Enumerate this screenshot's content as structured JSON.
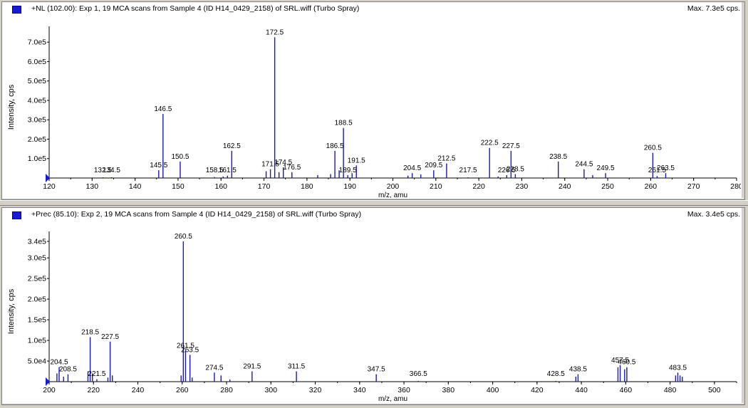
{
  "colors": {
    "bar": "#1818c8",
    "axis": "#000000",
    "text": "#000000",
    "icon": "#1a1ad6",
    "panel_bg": "#ffffff",
    "frame": "#d4d0c8"
  },
  "panel1": {
    "title": "+NL (102.00): Exp 1, 19 MCA scans from Sample 4 (ID H14_0429_2158) of SRL.wiff (Turbo Spray)",
    "max_label": "Max. 7.3e5 cps.",
    "icon": "spectrum-icon"
  },
  "panel2": {
    "title": "+Prec (85.10): Exp 2, 19 MCA scans from Sample 4 (ID H14_0429_2158) of SRL.wiff (Turbo Spray)",
    "max_label": "Max. 3.4e5 cps.",
    "icon": "spectrum-icon"
  },
  "chart_data": [
    {
      "type": "bar",
      "xlabel": "m/z, amu",
      "ylabel": "Intensity, cps",
      "xlim": [
        120,
        280
      ],
      "ylim": [
        0,
        730000
      ],
      "xticks": [
        120,
        130,
        140,
        150,
        160,
        170,
        180,
        190,
        200,
        210,
        220,
        230,
        240,
        250,
        260,
        270,
        280
      ],
      "yticks": [
        {
          "value": 100000,
          "label": "1.0e5"
        },
        {
          "value": 200000,
          "label": "2.0e5"
        },
        {
          "value": 300000,
          "label": "3.0e5"
        },
        {
          "value": 400000,
          "label": "4.0e5"
        },
        {
          "value": 500000,
          "label": "5.0e5"
        },
        {
          "value": 600000,
          "label": "6.0e5"
        },
        {
          "value": 700000,
          "label": "7.0e5"
        }
      ],
      "peaks": [
        {
          "mz": 132.5,
          "intensity": 2000,
          "label": "132.5"
        },
        {
          "mz": 134.5,
          "intensity": 2000,
          "label": "134.5"
        },
        {
          "mz": 145.5,
          "intensity": 40000,
          "label": "145.5"
        },
        {
          "mz": 146.5,
          "intensity": 330000,
          "label": "146.5"
        },
        {
          "mz": 150.5,
          "intensity": 85000,
          "label": "150.5"
        },
        {
          "mz": 158.5,
          "intensity": 5000,
          "label": "158.5"
        },
        {
          "mz": 160.5,
          "intensity": 8000,
          "label": ""
        },
        {
          "mz": 161.5,
          "intensity": 12000,
          "label": "161.5"
        },
        {
          "mz": 162.5,
          "intensity": 140000,
          "label": "162.5"
        },
        {
          "mz": 170.5,
          "intensity": 35000,
          "label": ""
        },
        {
          "mz": 171.5,
          "intensity": 45000,
          "label": "171.5"
        },
        {
          "mz": 172.5,
          "intensity": 725000,
          "label": "172.5"
        },
        {
          "mz": 173.5,
          "intensity": 30000,
          "label": ""
        },
        {
          "mz": 174.5,
          "intensity": 55000,
          "label": "174.5"
        },
        {
          "mz": 176.5,
          "intensity": 30000,
          "label": "176.5"
        },
        {
          "mz": 182.5,
          "intensity": 15000,
          "label": ""
        },
        {
          "mz": 185.5,
          "intensity": 20000,
          "label": ""
        },
        {
          "mz": 186.5,
          "intensity": 140000,
          "label": "186.5"
        },
        {
          "mz": 187.5,
          "intensity": 40000,
          "label": ""
        },
        {
          "mz": 188.5,
          "intensity": 258000,
          "label": "188.5"
        },
        {
          "mz": 189.5,
          "intensity": 15000,
          "label": "189.5"
        },
        {
          "mz": 190.5,
          "intensity": 25000,
          "label": ""
        },
        {
          "mz": 191.5,
          "intensity": 65000,
          "label": "191.5"
        },
        {
          "mz": 203.5,
          "intensity": 12000,
          "label": ""
        },
        {
          "mz": 204.5,
          "intensity": 25000,
          "label": "204.5"
        },
        {
          "mz": 206.5,
          "intensity": 18000,
          "label": ""
        },
        {
          "mz": 209.5,
          "intensity": 40000,
          "label": "209.5"
        },
        {
          "mz": 212.5,
          "intensity": 75000,
          "label": "212.5"
        },
        {
          "mz": 217.5,
          "intensity": 3000,
          "label": "217.5"
        },
        {
          "mz": 222.5,
          "intensity": 155000,
          "label": "222.5"
        },
        {
          "mz": 224.5,
          "intensity": 8000,
          "label": ""
        },
        {
          "mz": 226.5,
          "intensity": 15000,
          "label": "226.5"
        },
        {
          "mz": 227.5,
          "intensity": 140000,
          "label": "227.5"
        },
        {
          "mz": 228.5,
          "intensity": 20000,
          "label": "228.5"
        },
        {
          "mz": 238.5,
          "intensity": 85000,
          "label": "238.5"
        },
        {
          "mz": 244.5,
          "intensity": 45000,
          "label": "244.5"
        },
        {
          "mz": 246.5,
          "intensity": 15000,
          "label": ""
        },
        {
          "mz": 249.5,
          "intensity": 25000,
          "label": "249.5"
        },
        {
          "mz": 260.5,
          "intensity": 130000,
          "label": "260.5"
        },
        {
          "mz": 261.5,
          "intensity": 10000,
          "label": "261.5"
        },
        {
          "mz": 263.5,
          "intensity": 25000,
          "label": "263.5"
        }
      ]
    },
    {
      "type": "bar",
      "xlabel": "m/z, amu",
      "ylabel": "Intensity, cps",
      "xlim": [
        200,
        510
      ],
      "ylim": [
        0,
        340000
      ],
      "xticks": [
        200,
        220,
        240,
        260,
        280,
        300,
        320,
        340,
        360,
        380,
        400,
        420,
        440,
        460,
        480,
        500
      ],
      "yticks": [
        {
          "value": 50000,
          "label": "5.0e4"
        },
        {
          "value": 100000,
          "label": "1.0e5"
        },
        {
          "value": 150000,
          "label": "1.5e5"
        },
        {
          "value": 200000,
          "label": "2.0e5"
        },
        {
          "value": 250000,
          "label": "2.5e5"
        },
        {
          "value": 300000,
          "label": "3.0e5"
        },
        {
          "value": 340000,
          "label": "3.4e5"
        }
      ],
      "peaks": [
        {
          "mz": 203.5,
          "intensity": 20000,
          "label": ""
        },
        {
          "mz": 204.5,
          "intensity": 35000,
          "label": "204.5"
        },
        {
          "mz": 206.5,
          "intensity": 12000,
          "label": ""
        },
        {
          "mz": 208.5,
          "intensity": 18000,
          "label": "208.5"
        },
        {
          "mz": 217.5,
          "intensity": 25000,
          "label": ""
        },
        {
          "mz": 218.5,
          "intensity": 108000,
          "label": "218.5"
        },
        {
          "mz": 219.5,
          "intensity": 20000,
          "label": ""
        },
        {
          "mz": 221.5,
          "intensity": 6000,
          "label": "221.5"
        },
        {
          "mz": 226.5,
          "intensity": 10000,
          "label": ""
        },
        {
          "mz": 227.5,
          "intensity": 97000,
          "label": "227.5"
        },
        {
          "mz": 228.5,
          "intensity": 15000,
          "label": ""
        },
        {
          "mz": 259.5,
          "intensity": 15000,
          "label": ""
        },
        {
          "mz": 260.5,
          "intensity": 340000,
          "label": "260.5"
        },
        {
          "mz": 261.5,
          "intensity": 75000,
          "label": "261.5"
        },
        {
          "mz": 263.5,
          "intensity": 65000,
          "label": "263.5"
        },
        {
          "mz": 264.5,
          "intensity": 10000,
          "label": ""
        },
        {
          "mz": 274.5,
          "intensity": 22000,
          "label": "274.5"
        },
        {
          "mz": 277.5,
          "intensity": 15000,
          "label": ""
        },
        {
          "mz": 281.5,
          "intensity": 5000,
          "label": ""
        },
        {
          "mz": 291.5,
          "intensity": 25000,
          "label": "291.5"
        },
        {
          "mz": 311.5,
          "intensity": 25000,
          "label": "311.5"
        },
        {
          "mz": 347.5,
          "intensity": 18000,
          "label": "347.5"
        },
        {
          "mz": 366.5,
          "intensity": 1000,
          "label": "366.5"
        },
        {
          "mz": 428.5,
          "intensity": 1000,
          "label": "428.5"
        },
        {
          "mz": 437.5,
          "intensity": 12000,
          "label": ""
        },
        {
          "mz": 438.5,
          "intensity": 18000,
          "label": "438.5"
        },
        {
          "mz": 456.5,
          "intensity": 35000,
          "label": ""
        },
        {
          "mz": 457.5,
          "intensity": 40000,
          "label": "457.5"
        },
        {
          "mz": 459.5,
          "intensity": 30000,
          "label": ""
        },
        {
          "mz": 460.5,
          "intensity": 35000,
          "label": "460.5"
        },
        {
          "mz": 482.5,
          "intensity": 15000,
          "label": ""
        },
        {
          "mz": 483.5,
          "intensity": 22000,
          "label": "483.5"
        },
        {
          "mz": 484.5,
          "intensity": 15000,
          "label": ""
        },
        {
          "mz": 485.5,
          "intensity": 12000,
          "label": ""
        }
      ]
    }
  ]
}
